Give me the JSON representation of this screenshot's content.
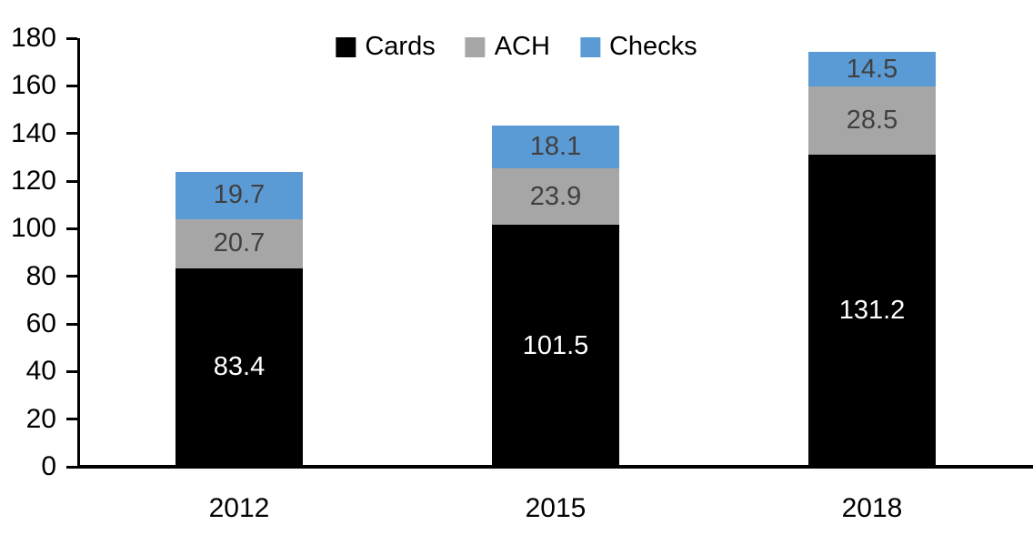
{
  "chart_data": {
    "type": "bar",
    "stacked": true,
    "title": "",
    "xlabel": "",
    "ylabel": "",
    "categories": [
      "2012",
      "2015",
      "2018"
    ],
    "series": [
      {
        "name": "Cards",
        "color": "#000000",
        "label_color": "#FFFFFF",
        "values": [
          83.4,
          101.5,
          131.2
        ]
      },
      {
        "name": "ACH",
        "color": "#A6A6A6",
        "label_color": "#404040",
        "values": [
          20.7,
          23.9,
          28.5
        ]
      },
      {
        "name": "Checks",
        "color": "#5B9BD5",
        "label_color": "#404040",
        "values": [
          19.7,
          18.1,
          14.5
        ]
      }
    ],
    "totals": [
      123.8,
      143.5,
      174.2
    ],
    "ylim": [
      0,
      180
    ],
    "ytick_step": 20,
    "yticks": [
      "0",
      "20",
      "40",
      "60",
      "80",
      "100",
      "120",
      "140",
      "160",
      "180"
    ],
    "legend_position": "top",
    "grid": false,
    "axis_color": "#000000"
  }
}
